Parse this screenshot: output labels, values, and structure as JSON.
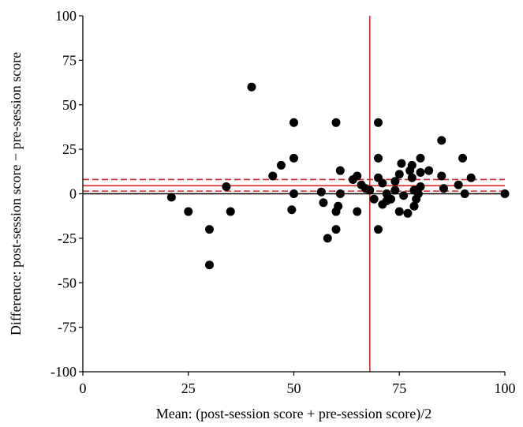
{
  "chart_data": {
    "type": "scatter",
    "title": "",
    "xlabel": "Mean: (post-session score + pre-session score)/2",
    "ylabel": "Difference: post-session score − pre-session score",
    "xlim": [
      0,
      100
    ],
    "ylim": [
      -100,
      100
    ],
    "x_ticks": [
      "0",
      "25",
      "50",
      "75",
      "100"
    ],
    "y_ticks": [
      "100",
      "75",
      "50",
      "25",
      "0",
      "-25",
      "-50",
      "-75",
      "-100"
    ],
    "grid": false,
    "reference_lines": {
      "zero_line": {
        "y": 0,
        "color": "#000000",
        "style": "solid"
      },
      "mean_difference": {
        "y": 4.5,
        "color": "#d62728",
        "style": "solid"
      },
      "ci_upper": {
        "y": 8,
        "color": "#d62728",
        "style": "dashed"
      },
      "ci_lower": {
        "y": 1.5,
        "color": "#d62728",
        "style": "dashed"
      },
      "vertical_line": {
        "x": 68,
        "color": "#d62728",
        "style": "solid"
      }
    },
    "marker_color": "#000000",
    "points": [
      {
        "x": 21,
        "y": -2
      },
      {
        "x": 25,
        "y": -10
      },
      {
        "x": 30,
        "y": -20
      },
      {
        "x": 30,
        "y": -40
      },
      {
        "x": 34,
        "y": 4
      },
      {
        "x": 35,
        "y": -10
      },
      {
        "x": 40,
        "y": 60
      },
      {
        "x": 45,
        "y": 10
      },
      {
        "x": 47,
        "y": 16
      },
      {
        "x": 50,
        "y": 40
      },
      {
        "x": 50,
        "y": 20
      },
      {
        "x": 50,
        "y": 0
      },
      {
        "x": 49.5,
        "y": -9
      },
      {
        "x": 56.5,
        "y": 1
      },
      {
        "x": 57,
        "y": -5
      },
      {
        "x": 58,
        "y": -25
      },
      {
        "x": 60,
        "y": 40
      },
      {
        "x": 60,
        "y": -10
      },
      {
        "x": 60,
        "y": -20
      },
      {
        "x": 60.5,
        "y": -7
      },
      {
        "x": 61,
        "y": 13
      },
      {
        "x": 61,
        "y": 0
      },
      {
        "x": 64,
        "y": 8
      },
      {
        "x": 65,
        "y": 10
      },
      {
        "x": 65,
        "y": -10
      },
      {
        "x": 66,
        "y": 5
      },
      {
        "x": 67,
        "y": 3
      },
      {
        "x": 68,
        "y": 2
      },
      {
        "x": 69,
        "y": -3
      },
      {
        "x": 70,
        "y": 40
      },
      {
        "x": 70,
        "y": 20
      },
      {
        "x": 70,
        "y": 9
      },
      {
        "x": 70,
        "y": -20
      },
      {
        "x": 71,
        "y": 6
      },
      {
        "x": 71,
        "y": -6
      },
      {
        "x": 72,
        "y": 0
      },
      {
        "x": 72,
        "y": -4
      },
      {
        "x": 73,
        "y": -3
      },
      {
        "x": 74,
        "y": 2
      },
      {
        "x": 74,
        "y": 7
      },
      {
        "x": 75,
        "y": 11
      },
      {
        "x": 75,
        "y": -10
      },
      {
        "x": 75.5,
        "y": 17
      },
      {
        "x": 76,
        "y": -1
      },
      {
        "x": 77,
        "y": -11
      },
      {
        "x": 77.5,
        "y": 13
      },
      {
        "x": 78,
        "y": 16
      },
      {
        "x": 78,
        "y": 9
      },
      {
        "x": 78.5,
        "y": 2
      },
      {
        "x": 78.5,
        "y": -7
      },
      {
        "x": 79,
        "y": -3
      },
      {
        "x": 79.5,
        "y": 0
      },
      {
        "x": 80,
        "y": 20
      },
      {
        "x": 80,
        "y": 12
      },
      {
        "x": 80,
        "y": 4
      },
      {
        "x": 82,
        "y": 13
      },
      {
        "x": 85,
        "y": 30
      },
      {
        "x": 85,
        "y": 10
      },
      {
        "x": 85.5,
        "y": 3
      },
      {
        "x": 89,
        "y": 5
      },
      {
        "x": 90,
        "y": 20
      },
      {
        "x": 90.5,
        "y": 0
      },
      {
        "x": 92,
        "y": 9
      },
      {
        "x": 100,
        "y": 0
      }
    ]
  }
}
